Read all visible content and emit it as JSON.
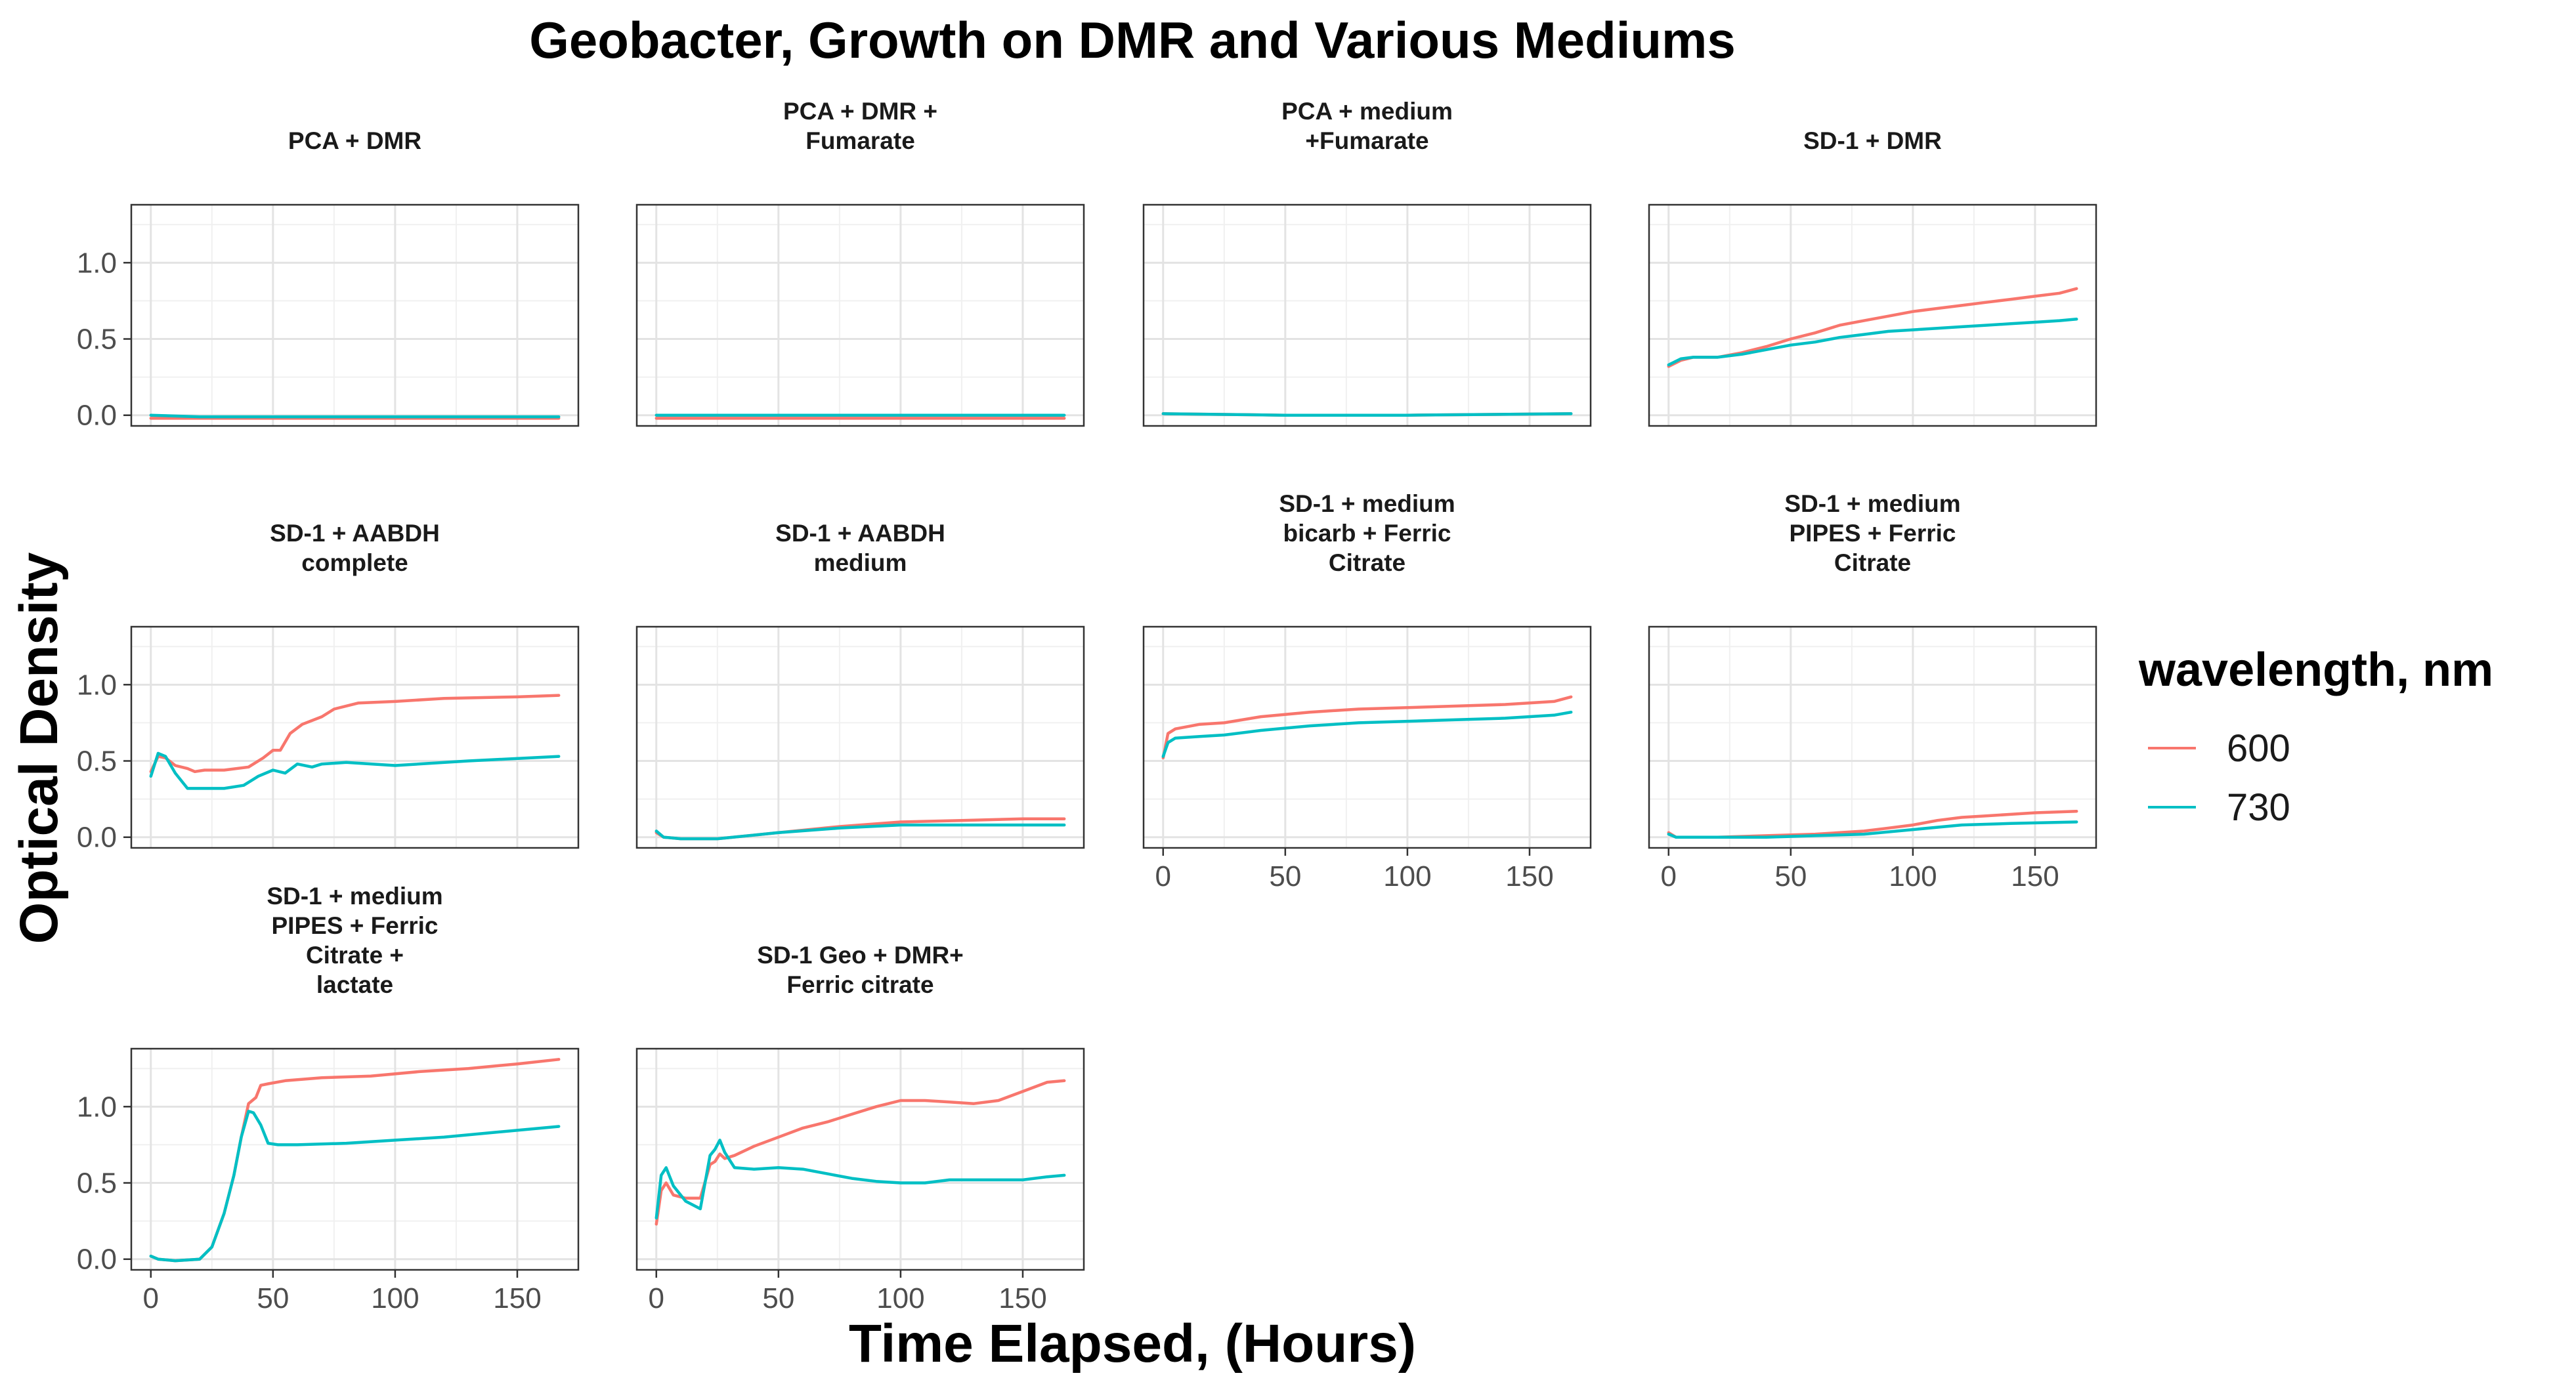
{
  "chart_data": {
    "type": "line",
    "title": "Geobacter, Growth on DMR and Various Mediums",
    "xlabel": "Time Elapsed, (Hours)",
    "ylabel": "Optical Density",
    "xlim": [
      -8,
      175
    ],
    "ylim": [
      -0.07,
      1.38
    ],
    "x_ticks": [
      0,
      50,
      100,
      150
    ],
    "y_ticks": [
      0.0,
      0.5,
      1.0
    ],
    "x_tick_labels": [
      "0",
      "50",
      "100",
      "150"
    ],
    "y_tick_labels": [
      "0.0",
      "0.5",
      "1.0"
    ],
    "grid": true,
    "legend": {
      "title": "wavelength, nm",
      "placement": "right",
      "entries": [
        {
          "label": "600",
          "color": "#F8766D"
        },
        {
          "label": "730",
          "color": "#00BFC4"
        }
      ]
    },
    "panels": [
      {
        "title": [
          "PCA + DMR"
        ],
        "series": [
          {
            "name": "600",
            "x": [
              0,
              20,
              50,
              100,
              150,
              167
            ],
            "y": [
              -0.02,
              -0.02,
              -0.02,
              -0.02,
              -0.02,
              -0.02
            ]
          },
          {
            "name": "730",
            "x": [
              0,
              20,
              50,
              100,
              150,
              167
            ],
            "y": [
              0.0,
              -0.01,
              -0.01,
              -0.01,
              -0.01,
              -0.01
            ]
          }
        ]
      },
      {
        "title": [
          "PCA + DMR +",
          "Fumarate"
        ],
        "series": [
          {
            "name": "600",
            "x": [
              0,
              50,
              100,
              167
            ],
            "y": [
              -0.02,
              -0.02,
              -0.02,
              -0.02
            ]
          },
          {
            "name": "730",
            "x": [
              0,
              50,
              100,
              167
            ],
            "y": [
              0.0,
              0.0,
              0.0,
              0.0
            ]
          }
        ]
      },
      {
        "title": [
          "PCA + medium",
          "+Fumarate"
        ],
        "series": [
          {
            "name": "600",
            "x": [
              0,
              50,
              100,
              167
            ],
            "y": [
              0.01,
              0.0,
              0.0,
              0.01
            ]
          },
          {
            "name": "730",
            "x": [
              0,
              50,
              100,
              167
            ],
            "y": [
              0.01,
              0.0,
              0.0,
              0.01
            ]
          }
        ]
      },
      {
        "title": [
          "SD-1 + DMR"
        ],
        "series": [
          {
            "name": "600",
            "x": [
              0,
              5,
              10,
              20,
              30,
              40,
              50,
              60,
              70,
              80,
              90,
              100,
              110,
              120,
              130,
              140,
              150,
              160,
              167
            ],
            "y": [
              0.32,
              0.36,
              0.38,
              0.38,
              0.41,
              0.45,
              0.5,
              0.54,
              0.59,
              0.62,
              0.65,
              0.68,
              0.7,
              0.72,
              0.74,
              0.76,
              0.78,
              0.8,
              0.83
            ]
          },
          {
            "name": "730",
            "x": [
              0,
              5,
              10,
              20,
              30,
              40,
              50,
              60,
              70,
              80,
              90,
              100,
              110,
              120,
              130,
              140,
              150,
              160,
              167
            ],
            "y": [
              0.33,
              0.37,
              0.38,
              0.38,
              0.4,
              0.43,
              0.46,
              0.48,
              0.51,
              0.53,
              0.55,
              0.56,
              0.57,
              0.58,
              0.59,
              0.6,
              0.61,
              0.62,
              0.63
            ]
          }
        ]
      },
      {
        "title": [
          "SD-1 + AABDH",
          "complete"
        ],
        "series": [
          {
            "name": "600",
            "x": [
              0,
              3,
              6,
              10,
              15,
              18,
              22,
              30,
              40,
              46,
              50,
              53,
              57,
              62,
              70,
              75,
              85,
              100,
              120,
              150,
              167
            ],
            "y": [
              0.43,
              0.53,
              0.52,
              0.47,
              0.45,
              0.43,
              0.44,
              0.44,
              0.46,
              0.52,
              0.57,
              0.57,
              0.68,
              0.74,
              0.79,
              0.84,
              0.88,
              0.89,
              0.91,
              0.92,
              0.93
            ]
          },
          {
            "name": "730",
            "x": [
              0,
              3,
              6,
              10,
              15,
              20,
              30,
              38,
              44,
              50,
              55,
              60,
              66,
              70,
              80,
              100,
              130,
              167
            ],
            "y": [
              0.4,
              0.55,
              0.53,
              0.42,
              0.32,
              0.32,
              0.32,
              0.34,
              0.4,
              0.44,
              0.42,
              0.48,
              0.46,
              0.48,
              0.49,
              0.47,
              0.5,
              0.53
            ]
          }
        ]
      },
      {
        "title": [
          "SD-1 + AABDH",
          "medium"
        ],
        "series": [
          {
            "name": "600",
            "x": [
              0,
              3,
              10,
              25,
              50,
              75,
              100,
              125,
              150,
              167
            ],
            "y": [
              0.03,
              0.0,
              -0.01,
              -0.01,
              0.03,
              0.07,
              0.1,
              0.11,
              0.12,
              0.12
            ]
          },
          {
            "name": "730",
            "x": [
              0,
              3,
              10,
              25,
              50,
              75,
              100,
              125,
              150,
              167
            ],
            "y": [
              0.04,
              0.0,
              -0.01,
              -0.01,
              0.03,
              0.06,
              0.08,
              0.08,
              0.08,
              0.08
            ]
          }
        ]
      },
      {
        "title": [
          "SD-1 + medium",
          "bicarb + Ferric",
          "Citrate"
        ],
        "series": [
          {
            "name": "600",
            "x": [
              0,
              2,
              5,
              15,
              25,
              40,
              60,
              80,
              100,
              120,
              140,
              160,
              167
            ],
            "y": [
              0.52,
              0.68,
              0.71,
              0.74,
              0.75,
              0.79,
              0.82,
              0.84,
              0.85,
              0.86,
              0.87,
              0.89,
              0.92
            ]
          },
          {
            "name": "730",
            "x": [
              0,
              2,
              5,
              15,
              25,
              40,
              60,
              80,
              100,
              120,
              140,
              160,
              167
            ],
            "y": [
              0.53,
              0.62,
              0.65,
              0.66,
              0.67,
              0.7,
              0.73,
              0.75,
              0.76,
              0.77,
              0.78,
              0.8,
              0.82
            ]
          }
        ]
      },
      {
        "title": [
          "SD-1 + medium",
          "PIPES + Ferric",
          "Citrate"
        ],
        "series": [
          {
            "name": "600",
            "x": [
              0,
              3,
              20,
              40,
              60,
              80,
              90,
              100,
              110,
              120,
              130,
              140,
              150,
              167
            ],
            "y": [
              0.03,
              0.0,
              0.0,
              0.01,
              0.02,
              0.04,
              0.06,
              0.08,
              0.11,
              0.13,
              0.14,
              0.15,
              0.16,
              0.17
            ]
          },
          {
            "name": "730",
            "x": [
              0,
              3,
              20,
              40,
              60,
              80,
              100,
              120,
              140,
              167
            ],
            "y": [
              0.02,
              0.0,
              0.0,
              0.0,
              0.01,
              0.02,
              0.05,
              0.08,
              0.09,
              0.1
            ]
          }
        ]
      },
      {
        "title": [
          "SD-1 + medium",
          "PIPES + Ferric",
          "Citrate +",
          "lactate"
        ],
        "series": [
          {
            "name": "600",
            "x": [
              0,
              3,
              10,
              20,
              25,
              30,
              34,
              37,
              40,
              43,
              45,
              48,
              55,
              70,
              90,
              110,
              130,
              150,
              167
            ],
            "y": [
              0.02,
              0.0,
              -0.01,
              0.0,
              0.08,
              0.3,
              0.55,
              0.8,
              1.02,
              1.06,
              1.14,
              1.15,
              1.17,
              1.19,
              1.2,
              1.23,
              1.25,
              1.28,
              1.31
            ]
          },
          {
            "name": "730",
            "x": [
              0,
              3,
              10,
              20,
              25,
              30,
              34,
              37,
              40,
              42,
              45,
              48,
              52,
              60,
              80,
              100,
              120,
              140,
              167
            ],
            "y": [
              0.02,
              0.0,
              -0.01,
              0.0,
              0.08,
              0.3,
              0.55,
              0.8,
              0.97,
              0.96,
              0.88,
              0.76,
              0.75,
              0.75,
              0.76,
              0.78,
              0.8,
              0.83,
              0.87
            ]
          }
        ]
      },
      {
        "title": [
          "SD-1 Geo + DMR+",
          "Ferric citrate"
        ],
        "series": [
          {
            "name": "600",
            "x": [
              0,
              2,
              4,
              7,
              12,
              18,
              22,
              24,
              26,
              28,
              32,
              40,
              50,
              60,
              70,
              80,
              90,
              100,
              110,
              120,
              130,
              140,
              150,
              160,
              167
            ],
            "y": [
              0.23,
              0.45,
              0.5,
              0.42,
              0.4,
              0.4,
              0.62,
              0.64,
              0.69,
              0.66,
              0.68,
              0.74,
              0.8,
              0.86,
              0.9,
              0.95,
              1.0,
              1.04,
              1.04,
              1.03,
              1.02,
              1.04,
              1.1,
              1.16,
              1.17
            ]
          },
          {
            "name": "730",
            "x": [
              0,
              2,
              4,
              7,
              12,
              18,
              22,
              24,
              26,
              28,
              32,
              40,
              50,
              60,
              70,
              80,
              90,
              100,
              110,
              120,
              130,
              140,
              150,
              160,
              167
            ],
            "y": [
              0.27,
              0.55,
              0.6,
              0.48,
              0.38,
              0.33,
              0.68,
              0.72,
              0.78,
              0.7,
              0.6,
              0.59,
              0.6,
              0.59,
              0.56,
              0.53,
              0.51,
              0.5,
              0.5,
              0.52,
              0.52,
              0.52,
              0.52,
              0.54,
              0.55
            ]
          }
        ]
      }
    ]
  }
}
